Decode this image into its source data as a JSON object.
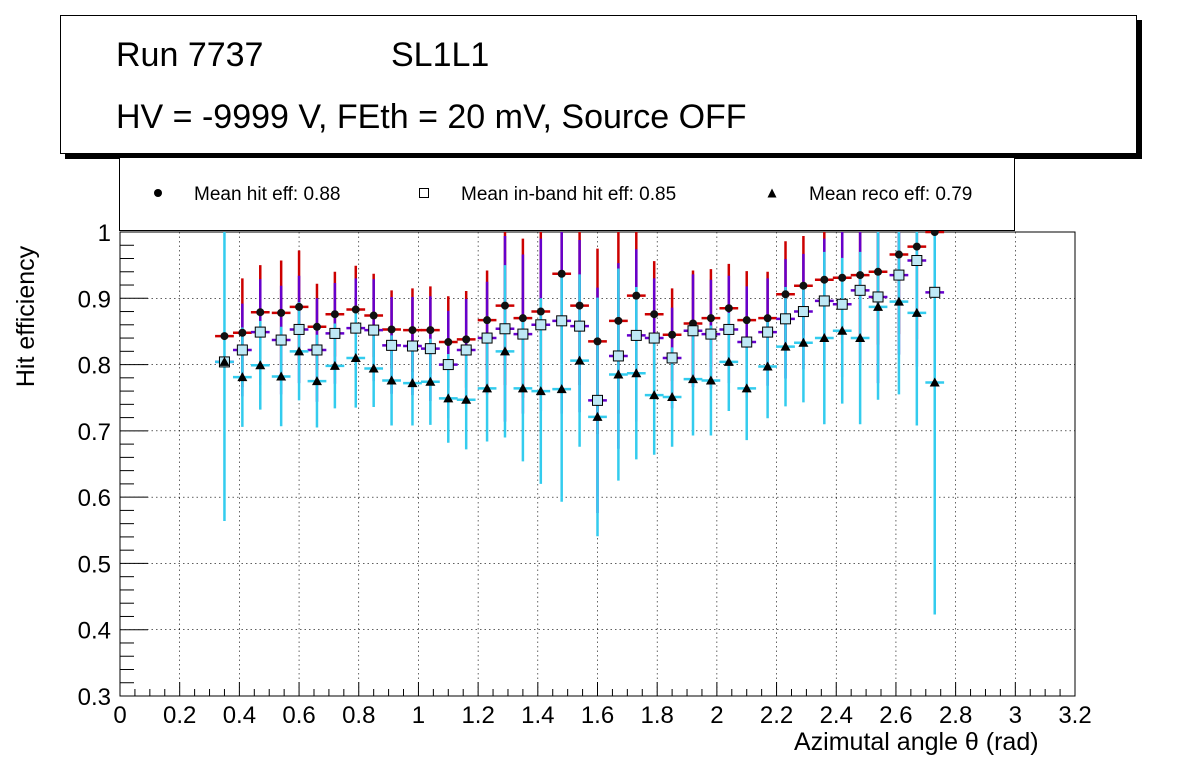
{
  "header": {
    "run_label": "Run 7737",
    "layer_label": "SL1L1",
    "conditions": "HV = -9999 V, FEth = 20 mV, Source OFF"
  },
  "legend": {
    "hit": "Mean hit  eff: 0.88",
    "inband": "Mean in-band hit eff: 0.85",
    "reco": "Mean reco eff: 0.79"
  },
  "colors": {
    "hit_error": "#cc0000",
    "inband_error": "#6600cc",
    "reco_error": "#33ccee",
    "inband_fill": "#bfe8f5",
    "grid": "#000000"
  },
  "chart_data": {
    "type": "scatter",
    "title": "",
    "xlabel": "Azimutal angle θ (rad)",
    "ylabel": "Hit efficiency",
    "xlim": [
      0,
      3.2
    ],
    "ylim": [
      0.3,
      1.0
    ],
    "grid": true,
    "xticks": [
      "0",
      "0.2",
      "0.4",
      "0.6",
      "0.8",
      "1",
      "1.2",
      "1.4",
      "1.6",
      "1.8",
      "2",
      "2.2",
      "2.4",
      "2.6",
      "2.8",
      "3",
      "3.2"
    ],
    "yticks": [
      "0.3",
      "0.4",
      "0.5",
      "0.6",
      "0.7",
      "0.8",
      "0.9",
      "1"
    ],
    "bin_half_width": 0.0314,
    "x": [
      0.35,
      0.41,
      0.47,
      0.54,
      0.6,
      0.66,
      0.72,
      0.79,
      0.85,
      0.91,
      0.98,
      1.04,
      1.1,
      1.16,
      1.23,
      1.29,
      1.35,
      1.41,
      1.48,
      1.54,
      1.6,
      1.67,
      1.73,
      1.79,
      1.85,
      1.92,
      1.98,
      2.04,
      2.1,
      2.17,
      2.23,
      2.29,
      2.36,
      2.42,
      2.48,
      2.54,
      2.61,
      2.67,
      2.73
    ],
    "series": [
      {
        "name": "Mean hit  eff: 0.88",
        "values": [
          0.843,
          0.848,
          0.879,
          0.878,
          0.887,
          0.857,
          0.876,
          0.883,
          0.874,
          0.853,
          0.852,
          0.852,
          0.834,
          0.838,
          0.867,
          0.889,
          0.87,
          0.88,
          0.937,
          0.889,
          0.835,
          0.866,
          0.904,
          0.876,
          0.845,
          0.862,
          0.87,
          0.885,
          0.867,
          0.87,
          0.906,
          0.919,
          0.928,
          0.931,
          0.935,
          0.94,
          0.966,
          0.978,
          1.0
        ],
        "err": [
          0.0,
          0.082,
          0.071,
          0.079,
          0.085,
          0.065,
          0.064,
          0.066,
          0.063,
          0.059,
          0.063,
          0.066,
          0.069,
          0.073,
          0.075,
          0.12,
          0.12,
          0.12,
          0.13,
          0.12,
          0.14,
          0.14,
          0.12,
          0.08,
          0.07,
          0.08,
          0.074,
          0.067,
          0.074,
          0.07,
          0.08,
          0.075,
          0.088,
          0.099,
          0.095,
          0.11,
          0.12,
          0.14,
          0.0
        ]
      },
      {
        "name": "Mean in-band hit eff: 0.85",
        "values": [
          0.804,
          0.822,
          0.849,
          0.837,
          0.853,
          0.822,
          0.847,
          0.855,
          0.852,
          0.829,
          0.828,
          0.824,
          0.8,
          0.822,
          0.84,
          0.854,
          0.846,
          0.86,
          0.866,
          0.858,
          0.746,
          0.813,
          0.844,
          0.84,
          0.81,
          0.851,
          0.846,
          0.853,
          0.834,
          0.849,
          0.869,
          0.88,
          0.896,
          0.891,
          0.912,
          0.902,
          0.935,
          0.957,
          0.909
        ],
        "err": [
          0.0,
          0.07,
          0.08,
          0.082,
          0.081,
          0.078,
          0.076,
          0.075,
          0.077,
          0.073,
          0.074,
          0.079,
          0.081,
          0.077,
          0.085,
          0.14,
          0.12,
          0.13,
          0.14,
          0.13,
          0.17,
          0.14,
          0.13,
          0.09,
          0.076,
          0.085,
          0.082,
          0.081,
          0.084,
          0.081,
          0.09,
          0.087,
          0.094,
          0.11,
          0.11,
          0.13,
          0.12,
          0.16,
          0.12
        ]
      },
      {
        "name": "Mean reco eff: 0.79",
        "values": [
          0.804,
          0.781,
          0.799,
          0.782,
          0.82,
          0.775,
          0.798,
          0.81,
          0.794,
          0.776,
          0.772,
          0.774,
          0.749,
          0.747,
          0.764,
          0.82,
          0.764,
          0.76,
          0.763,
          0.806,
          0.721,
          0.785,
          0.787,
          0.754,
          0.751,
          0.778,
          0.776,
          0.804,
          0.764,
          0.797,
          0.827,
          0.833,
          0.84,
          0.851,
          0.84,
          0.887,
          0.895,
          0.878,
          0.773
        ],
        "err": [
          0.24,
          0.075,
          0.067,
          0.075,
          0.074,
          0.07,
          0.064,
          0.075,
          0.058,
          0.068,
          0.064,
          0.065,
          0.067,
          0.075,
          0.08,
          0.13,
          0.11,
          0.14,
          0.17,
          0.13,
          0.18,
          0.16,
          0.13,
          0.09,
          0.075,
          0.085,
          0.083,
          0.074,
          0.078,
          0.078,
          0.09,
          0.09,
          0.13,
          0.11,
          0.13,
          0.14,
          0.14,
          0.17,
          0.35
        ]
      }
    ]
  }
}
